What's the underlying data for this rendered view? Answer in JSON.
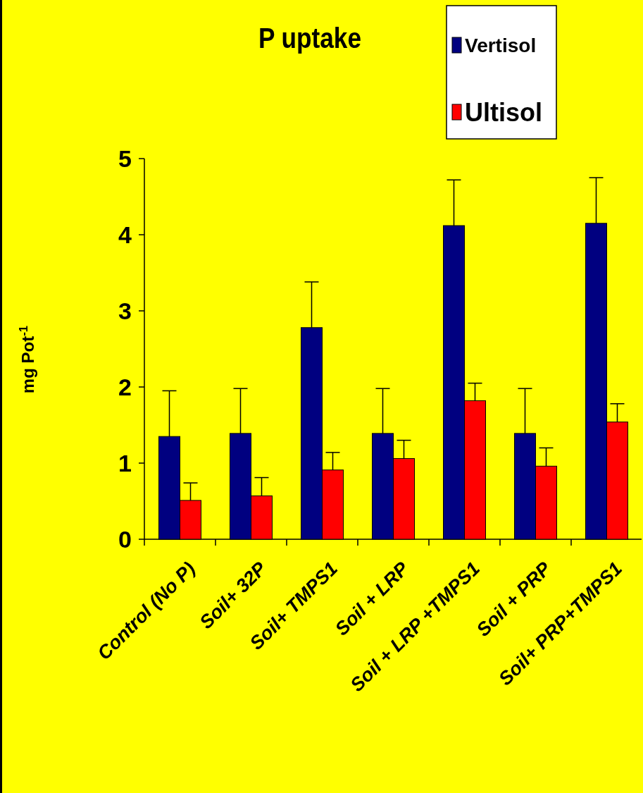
{
  "chart_data": {
    "type": "bar",
    "title": "P uptake",
    "ylabel": "mg Pot$^{-1}$",
    "categories": [
      "Control (No P)",
      "Soil+  32P",
      "Soil+ TMPS1",
      "Soil + LRP",
      "Soil + LRP +TMPS1",
      "Soil + PRP",
      "Soil+ PRP+TMPS1"
    ],
    "series": [
      {
        "name": "Vertisol",
        "color": "#000080",
        "values": [
          1.35,
          1.39,
          2.78,
          1.39,
          4.12,
          1.39,
          4.15
        ],
        "errors": [
          [
            1.35,
            1.95
          ],
          [
            1.39,
            1.98
          ],
          [
            2.78,
            3.38
          ],
          [
            1.39,
            1.98
          ],
          [
            4.12,
            4.72
          ],
          [
            1.39,
            1.98
          ],
          [
            4.15,
            4.75
          ]
        ]
      },
      {
        "name": "Ultisol",
        "color": "#ff0000",
        "values": [
          0.51,
          0.57,
          0.91,
          1.06,
          1.82,
          0.96,
          1.54
        ],
        "errors": [
          [
            0.51,
            0.74
          ],
          [
            0.57,
            0.81
          ],
          [
            0.91,
            1.14
          ],
          [
            1.06,
            1.3
          ],
          [
            1.82,
            2.05
          ],
          [
            0.96,
            1.2
          ],
          [
            1.54,
            1.78
          ]
        ]
      }
    ],
    "ylim": [
      0,
      5
    ],
    "yticks": [
      0,
      1,
      2,
      3,
      4,
      5
    ],
    "grid": false,
    "legend": "top right"
  }
}
